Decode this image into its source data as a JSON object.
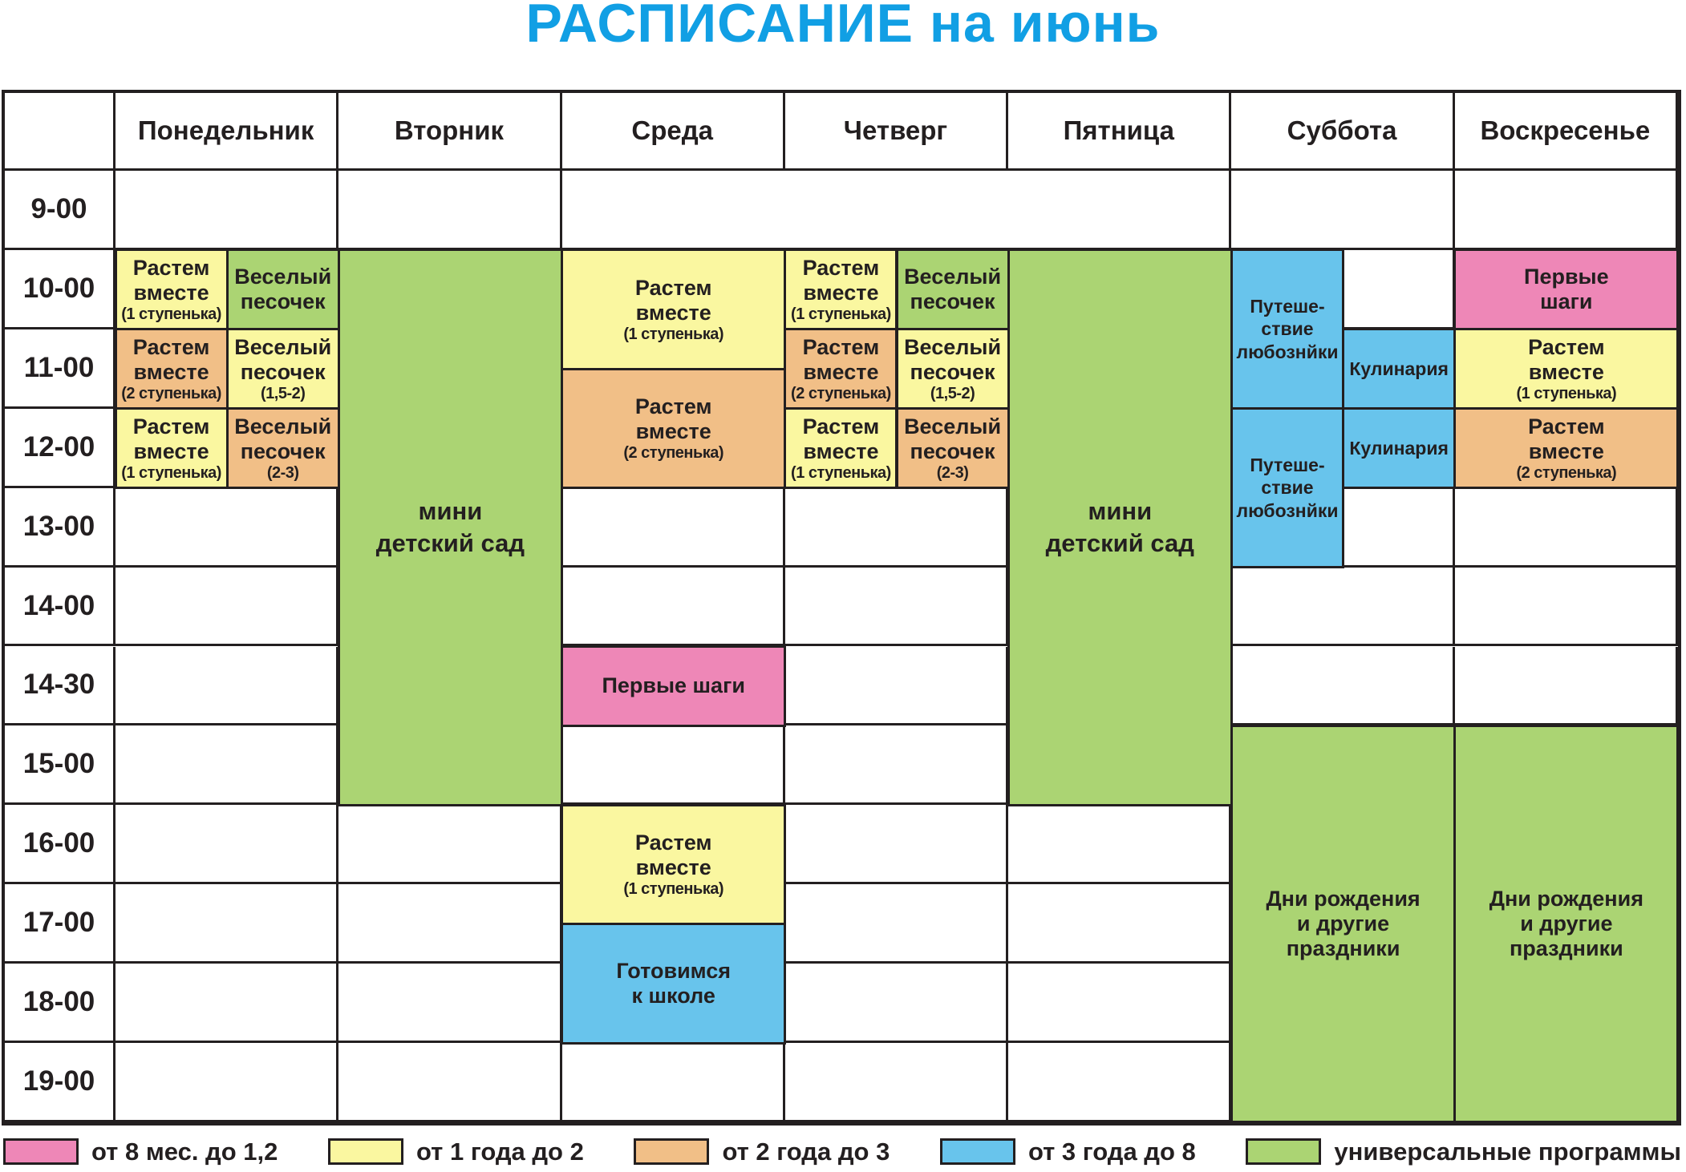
{
  "title": "РАСПИСАНИЕ на июнь",
  "colors": {
    "title_blue": "#119fe4",
    "yellow": "#faf7a0",
    "orange": "#f1bf87",
    "green": "#abd473",
    "blue": "#68c4ec",
    "pink": "#ee87b7",
    "line": "#231f20"
  },
  "days": [
    "Понедельник",
    "Вторник",
    "Среда",
    "Четверг",
    "Пятница",
    "Суббота",
    "Воскресенье"
  ],
  "times": [
    "9-00",
    "10-00",
    "11-00",
    "12-00",
    "13-00",
    "14-00",
    "14-30",
    "15-00",
    "16-00",
    "17-00",
    "18-00",
    "19-00"
  ],
  "schedule": [
    {
      "day": 0,
      "side": "L",
      "row": 1,
      "span": 1,
      "color": "yellow",
      "text": "Растем\nвместе",
      "note": "(1 ступенька)"
    },
    {
      "day": 0,
      "side": "R",
      "row": 1,
      "span": 1,
      "color": "green",
      "text": "Веселый\nпесочек"
    },
    {
      "day": 0,
      "side": "L",
      "row": 2,
      "span": 1,
      "color": "orange",
      "text": "Растем\nвместе",
      "note": "(2 ступенька)"
    },
    {
      "day": 0,
      "side": "R",
      "row": 2,
      "span": 1,
      "color": "yellow",
      "text": "Веселый\nпесочек",
      "note": "(1,5-2)"
    },
    {
      "day": 0,
      "side": "L",
      "row": 3,
      "span": 1,
      "color": "yellow",
      "text": "Растем\nвместе",
      "note": "(1 ступенька)"
    },
    {
      "day": 0,
      "side": "R",
      "row": 3,
      "span": 1,
      "color": "orange",
      "text": "Веселый\nпесочек",
      "note": "(2-3)"
    },
    {
      "day": 1,
      "row": 1,
      "span": 7,
      "color": "green",
      "text": "мини\nдетский сад",
      "size": "lg"
    },
    {
      "day": 2,
      "row": 1,
      "span": 1.5,
      "color": "yellow",
      "text": "Растем\nвместе",
      "note": "(1 ступенька)"
    },
    {
      "day": 2,
      "row": 2.5,
      "span": 1.5,
      "color": "orange",
      "text": "Растем\nвместе",
      "note": "(2 ступенька)"
    },
    {
      "day": 2,
      "row": 6,
      "span": 1,
      "color": "pink",
      "text": "Первые шаги"
    },
    {
      "day": 2,
      "row": 8,
      "span": 1.5,
      "color": "yellow",
      "text": "Растем\nвместе",
      "note": "(1 ступенька)"
    },
    {
      "day": 2,
      "row": 9.5,
      "span": 1.5,
      "color": "blue",
      "text": "Готовимся\nк школе"
    },
    {
      "day": 3,
      "side": "L",
      "row": 1,
      "span": 1,
      "color": "yellow",
      "text": "Растем\nвместе",
      "note": "(1 ступенька)"
    },
    {
      "day": 3,
      "side": "R",
      "row": 1,
      "span": 1,
      "color": "green",
      "text": "Веселый\nпесочек"
    },
    {
      "day": 3,
      "side": "L",
      "row": 2,
      "span": 1,
      "color": "orange",
      "text": "Растем\nвместе",
      "note": "(2 ступенька)"
    },
    {
      "day": 3,
      "side": "R",
      "row": 2,
      "span": 1,
      "color": "yellow",
      "text": "Веселый\nпесочек",
      "note": "(1,5-2)"
    },
    {
      "day": 3,
      "side": "L",
      "row": 3,
      "span": 1,
      "color": "yellow",
      "text": "Растем\nвместе",
      "note": "(1 ступенька)"
    },
    {
      "day": 3,
      "side": "R",
      "row": 3,
      "span": 1,
      "color": "orange",
      "text": "Веселый\nпесочек",
      "note": "(2-3)"
    },
    {
      "day": 4,
      "row": 1,
      "span": 7,
      "color": "green",
      "text": "мини\nдетский сад",
      "size": "lg"
    },
    {
      "day": 5,
      "side": "L",
      "row": 1,
      "span": 2,
      "color": "blue",
      "text": "Путеше-\nствие\nлюбознйки",
      "size": "sm"
    },
    {
      "day": 5,
      "side": "R",
      "row": 2,
      "span": 1,
      "color": "blue",
      "text": "Кулинария",
      "size": "sm"
    },
    {
      "day": 5,
      "side": "L",
      "row": 3,
      "span": 2,
      "color": "blue",
      "text": "Путеше-\nствие\nлюбознйки",
      "size": "sm"
    },
    {
      "day": 5,
      "side": "R",
      "row": 3,
      "span": 1,
      "color": "blue",
      "text": "Кулинария",
      "size": "sm"
    },
    {
      "day": 5,
      "row": 7,
      "span": 5,
      "color": "green",
      "text": "Дни рождения\nи другие\nпраздники"
    },
    {
      "day": 6,
      "row": 1,
      "span": 1,
      "color": "pink",
      "text": "Первые\nшаги"
    },
    {
      "day": 6,
      "row": 2,
      "span": 1,
      "color": "yellow",
      "text": "Растем\nвместе",
      "note": "(1 ступенька)"
    },
    {
      "day": 6,
      "row": 3,
      "span": 1,
      "color": "orange",
      "text": "Растем\nвместе",
      "note": "(2 ступенька)"
    },
    {
      "day": 6,
      "row": 7,
      "span": 5,
      "color": "green",
      "text": "Дни рождения\nи другие\nпраздники"
    }
  ],
  "merged_9_00_cell_days": [
    2,
    3,
    4
  ],
  "legend": [
    {
      "color": "pink",
      "label": "от 8 мес. до 1,2"
    },
    {
      "color": "yellow",
      "label": "от 1 года до 2"
    },
    {
      "color": "orange",
      "label": "от 2 года до 3"
    },
    {
      "color": "blue",
      "label": "от 3 года до 8"
    },
    {
      "color": "green",
      "label": "универсальные программы"
    }
  ]
}
